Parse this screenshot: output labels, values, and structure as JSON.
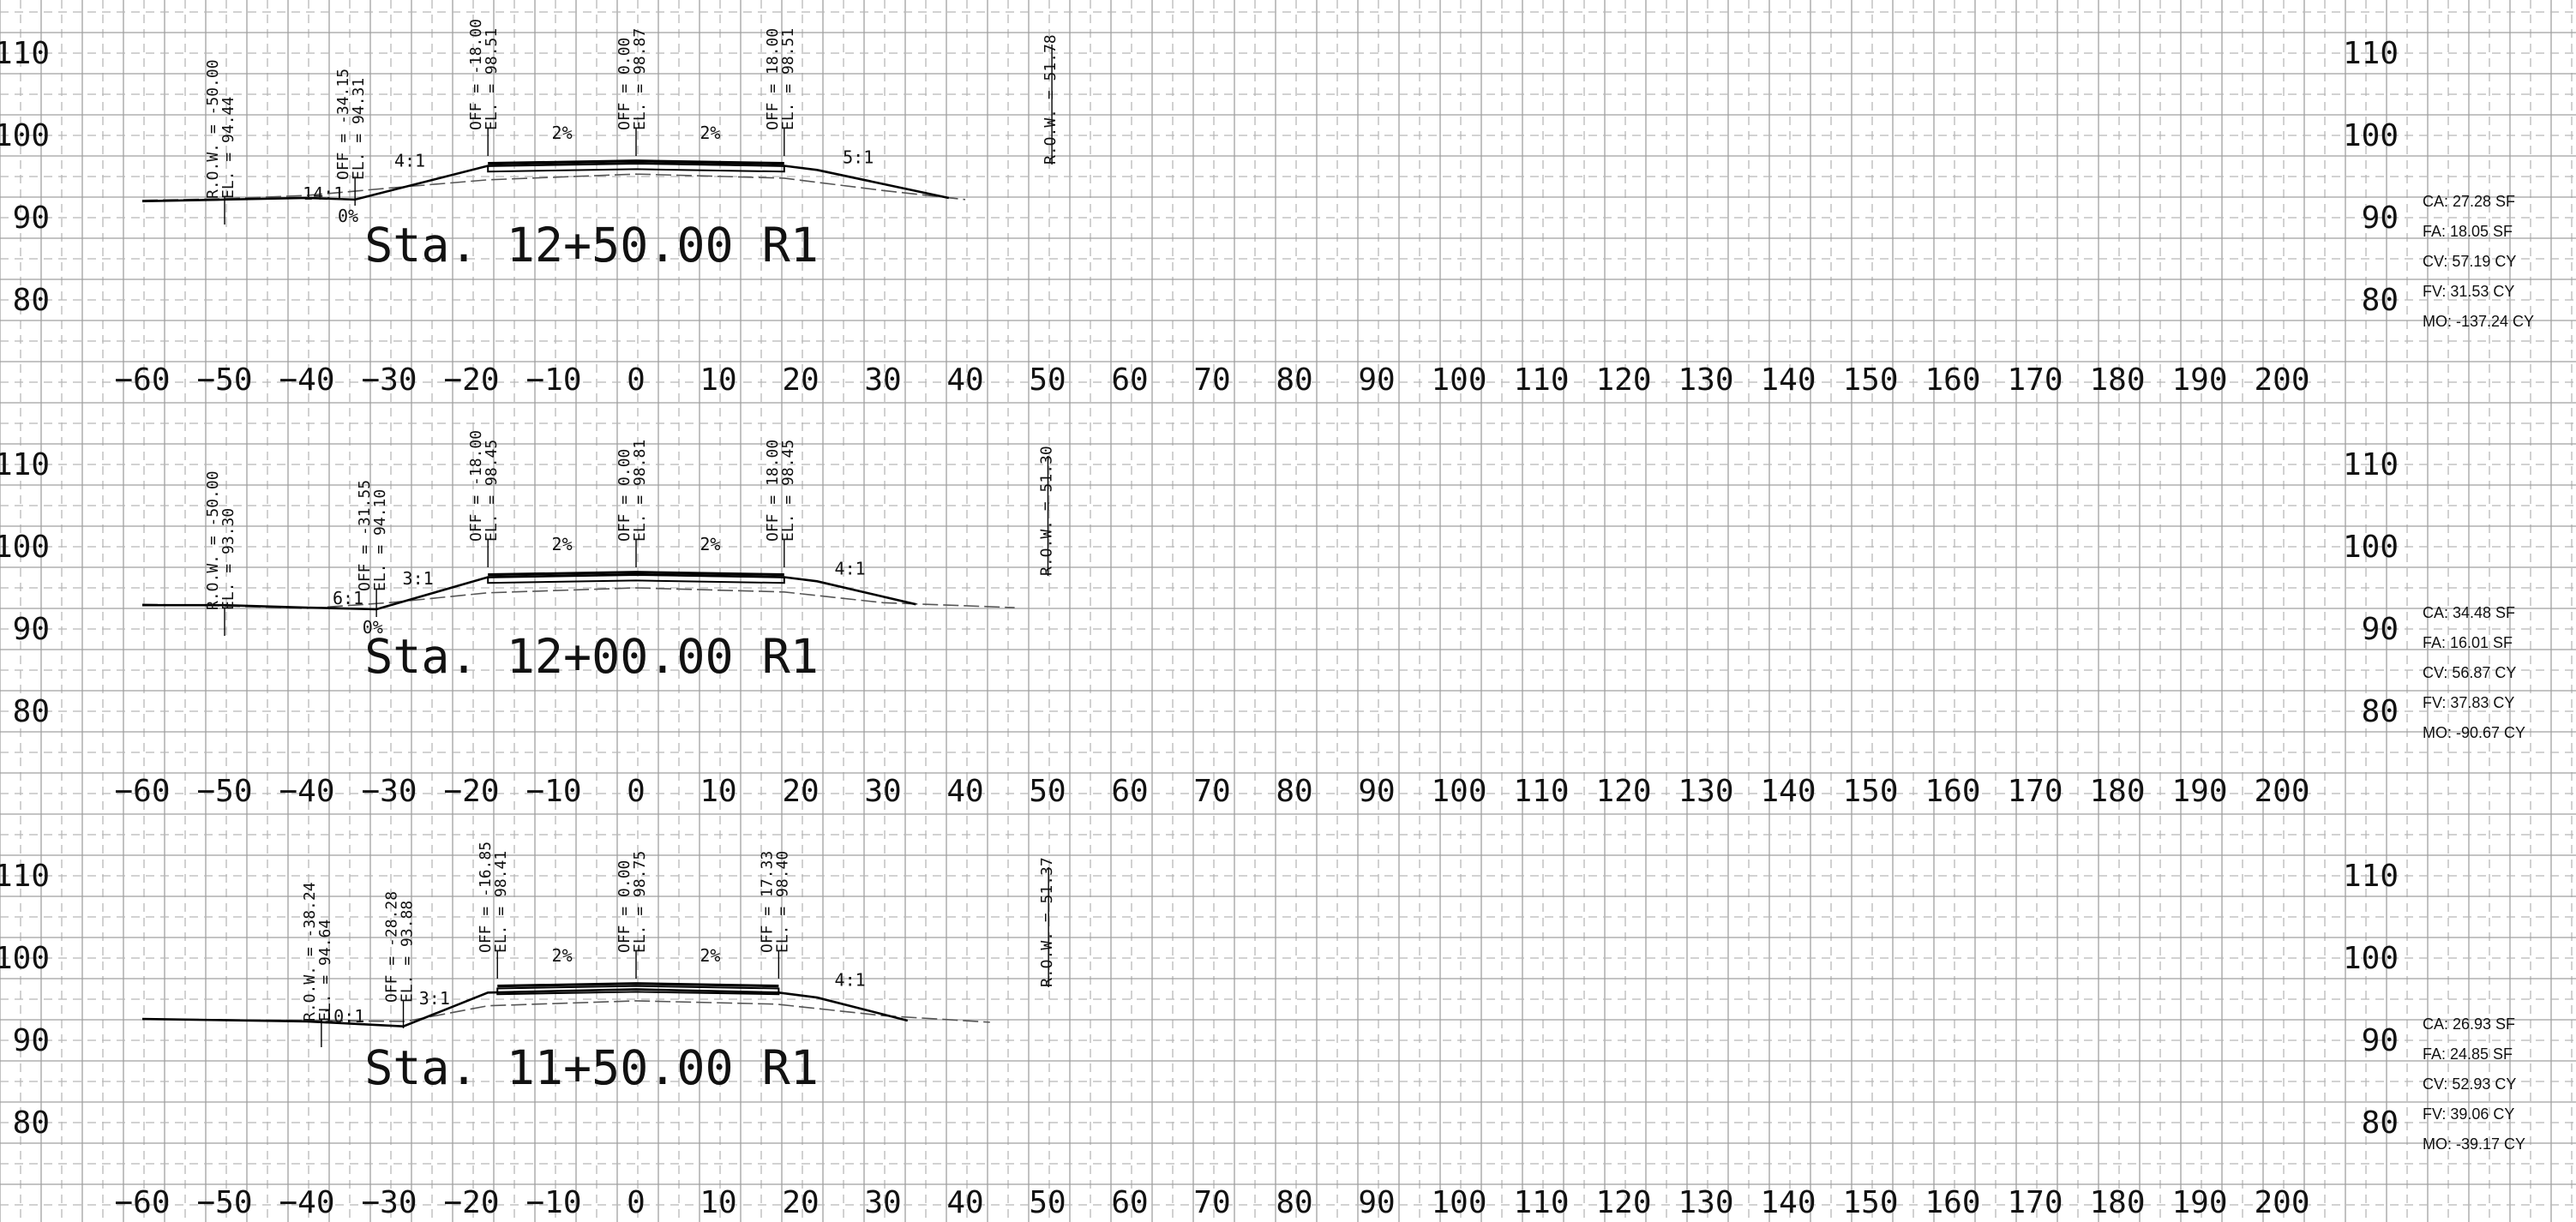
{
  "sections": [
    {
      "name": "Sta. 12+50.00 R1",
      "labels": [
        {
          "lines": [
            "R.O.W. = -50.00",
            "EL. = 94.44"
          ],
          "off": -50
        },
        {
          "lines": [
            "OFF = -34.15",
            "EL. = 94.31"
          ],
          "off": -34.15
        },
        {
          "lines": [
            "OFF = -18.00",
            "EL. = 98.51"
          ],
          "off": -18
        },
        {
          "lines": [
            "OFF = 0.00",
            "EL. = 98.87"
          ],
          "off": 0
        },
        {
          "lines": [
            "OFF = 18.00",
            "EL. = 98.51"
          ],
          "off": 18
        },
        {
          "lines": [
            "R.O.W. = 51.78"
          ],
          "off": 51.78
        }
      ],
      "slopes": [
        {
          "text": "14:1",
          "off": -38,
          "elev": 92.2
        },
        {
          "text": "4:1",
          "off": -27.5,
          "elev": 96.2
        },
        {
          "text": "2%",
          "off": -9,
          "elev": 99.6
        },
        {
          "text": "2%",
          "off": 9,
          "elev": 99.6
        },
        {
          "text": "5:1",
          "off": 27,
          "elev": 96.6
        }
      ],
      "ditch_label": {
        "text": "0%",
        "off": -35,
        "elev": 89.5
      },
      "quantities": [
        "CA: 27.28 SF",
        "FA: 18.05 SF",
        "CV: 57.19 CY",
        "FV: 31.53 CY",
        "MO: -137.24 CY"
      ],
      "profile": [
        [
          -60,
          92.0
        ],
        [
          -50,
          92.2
        ],
        [
          -40,
          92.4
        ],
        [
          -34.15,
          92.2
        ],
        [
          -18,
          96.3
        ],
        [
          0,
          96.6
        ],
        [
          18,
          96.3
        ],
        [
          22,
          95.8
        ],
        [
          38,
          92.4
        ]
      ],
      "existing": [
        [
          -60,
          92.1
        ],
        [
          -50,
          92.3
        ],
        [
          -40,
          92.7
        ],
        [
          -30,
          93.6
        ],
        [
          -18,
          94.6
        ],
        [
          0,
          95.3
        ],
        [
          18,
          94.8
        ],
        [
          30,
          93.3
        ],
        [
          40,
          92.2
        ]
      ]
    },
    {
      "name": "Sta. 12+00.00 R1",
      "labels": [
        {
          "lines": [
            "R.O.W. = -50.00",
            "EL. = 93.30"
          ],
          "off": -50
        },
        {
          "lines": [
            "OFF = -31.55",
            "EL. = 94.10"
          ],
          "off": -31.55
        },
        {
          "lines": [
            "OFF = -18.00",
            "EL. = 98.45"
          ],
          "off": -18
        },
        {
          "lines": [
            "OFF = 0.00",
            "EL. = 98.81"
          ],
          "off": 0
        },
        {
          "lines": [
            "OFF = 18.00",
            "EL. = 98.45"
          ],
          "off": 18
        },
        {
          "lines": [
            "R.O.W. = 51.30"
          ],
          "off": 51.3
        }
      ],
      "slopes": [
        {
          "text": "6:1",
          "off": -35,
          "elev": 93.0
        },
        {
          "text": "3:1",
          "off": -26.5,
          "elev": 95.4
        },
        {
          "text": "2%",
          "off": -9,
          "elev": 99.6
        },
        {
          "text": "2%",
          "off": 9,
          "elev": 99.6
        },
        {
          "text": "4:1",
          "off": 26,
          "elev": 96.6
        }
      ],
      "ditch_label": {
        "text": "0%",
        "off": -32,
        "elev": 89.5
      },
      "quantities": [
        "CA: 34.48 SF",
        "FA: 16.01 SF",
        "CV: 56.87 CY",
        "FV: 37.83 CY",
        "MO: -90.67 CY"
      ],
      "profile": [
        [
          -60,
          92.9
        ],
        [
          -50,
          92.9
        ],
        [
          -40,
          92.6
        ],
        [
          -31.55,
          92.4
        ],
        [
          -18,
          96.3
        ],
        [
          0,
          96.6
        ],
        [
          18,
          96.3
        ],
        [
          22,
          95.8
        ],
        [
          34,
          93.0
        ]
      ],
      "existing": [
        [
          -60,
          93.0
        ],
        [
          -50,
          92.8
        ],
        [
          -40,
          92.5
        ],
        [
          -30,
          93.2
        ],
        [
          -18,
          94.4
        ],
        [
          0,
          95.0
        ],
        [
          18,
          94.5
        ],
        [
          30,
          93.2
        ],
        [
          46,
          92.6
        ]
      ]
    },
    {
      "name": "Sta. 11+50.00 R1",
      "labels": [
        {
          "lines": [
            "R.O.W. = -38.24",
            "EL. = 94.64"
          ],
          "off": -38.24
        },
        {
          "lines": [
            "OFF = -28.28",
            "EL. = 93.88"
          ],
          "off": -28.28
        },
        {
          "lines": [
            "OFF = -16.85",
            "EL. = 98.41"
          ],
          "off": -16.85
        },
        {
          "lines": [
            "OFF = 0.00",
            "EL. = 98.75"
          ],
          "off": 0
        },
        {
          "lines": [
            "OFF = 17.33",
            "EL. = 98.40"
          ],
          "off": 17.33
        },
        {
          "lines": [
            "R.O.W. = 51.37"
          ],
          "off": 51.37
        }
      ],
      "slopes": [
        {
          "text": "10:1",
          "off": -35.5,
          "elev": 92.2
        },
        {
          "text": "3:1",
          "off": -24.5,
          "elev": 94.4
        },
        {
          "text": "2%",
          "off": -9,
          "elev": 99.6
        },
        {
          "text": "2%",
          "off": 9,
          "elev": 99.6
        },
        {
          "text": "4:1",
          "off": 26,
          "elev": 96.6
        }
      ],
      "ditch_label": {
        "text": "",
        "off": -30,
        "elev": 89.5
      },
      "quantities": [
        "CA: 26.93 SF",
        "FA: 24.85 SF",
        "CV: 52.93 CY",
        "FV: 39.06 CY",
        "MO: -39.17 CY"
      ],
      "profile": [
        [
          -60,
          92.6
        ],
        [
          -40,
          92.3
        ],
        [
          -28.28,
          91.7
        ],
        [
          -18,
          95.8
        ],
        [
          0,
          96.2
        ],
        [
          17.33,
          95.8
        ],
        [
          22,
          95.2
        ],
        [
          33,
          92.4
        ]
      ],
      "existing": [
        [
          -60,
          92.6
        ],
        [
          -40,
          92.4
        ],
        [
          -28,
          92.3
        ],
        [
          -18,
          94.2
        ],
        [
          0,
          94.8
        ],
        [
          17,
          94.4
        ],
        [
          30,
          93.0
        ],
        [
          43,
          92.2
        ]
      ]
    }
  ],
  "elevation_ticks": [
    "110",
    "100",
    "90",
    "80"
  ],
  "station_ticks": [
    "-60",
    "-50",
    "-40",
    "-30",
    "-20",
    "-10",
    "0",
    "10",
    "20",
    "30",
    "40",
    "50",
    "60",
    "70",
    "80",
    "90",
    "100",
    "110",
    "120",
    "130",
    "140",
    "150",
    "160",
    "170",
    "180",
    "190",
    "200"
  ]
}
